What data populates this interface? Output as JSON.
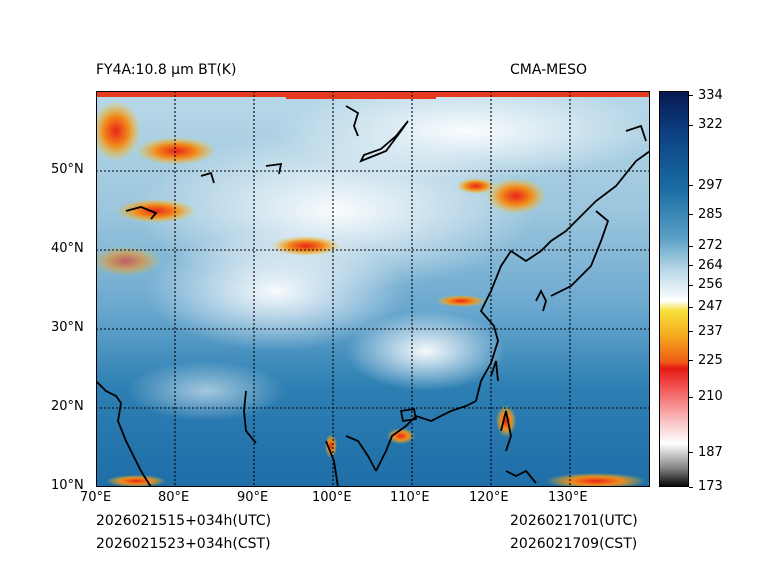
{
  "header": {
    "left_title": "FY4A:10.8 μm BT(K)",
    "right_title": "CMA-MESO"
  },
  "map": {
    "lon_labels": [
      "70°E",
      "80°E",
      "90°E",
      "100°E",
      "110°E",
      "120°E",
      "130°E"
    ],
    "lat_labels": [
      "10°N",
      "20°N",
      "30°N",
      "40°N",
      "50°N"
    ],
    "lon_range": [
      70,
      140
    ],
    "lat_range": [
      10,
      60
    ]
  },
  "colorbar": {
    "ticks": [
      "334",
      "322",
      "297",
      "285",
      "272",
      "264",
      "256",
      "247",
      "237",
      "225",
      "210",
      "187",
      "173"
    ],
    "range": [
      173,
      336
    ]
  },
  "footer": {
    "init_utc": "2026021515+034h(UTC)",
    "init_cst": "2026021523+034h(CST)",
    "valid_utc": "2026021701(UTC)",
    "valid_cst": "2026021709(CST)"
  }
}
